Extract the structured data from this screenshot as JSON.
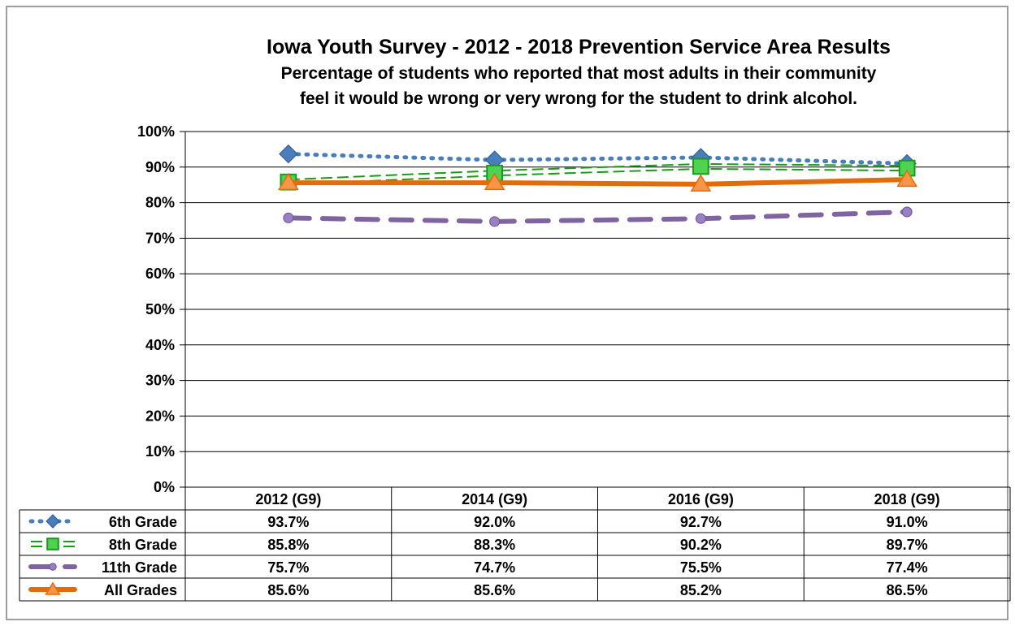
{
  "chart_data": {
    "type": "line",
    "title": "Iowa Youth Survey - 2012 - 2018 Prevention Service Area Results",
    "subtitle_line1": "Percentage of students who reported that most adults in their community",
    "subtitle_line2": "feel it would be wrong or very wrong for the student to drink alcohol.",
    "categories": [
      "2012 (G9)",
      "2014 (G9)",
      "2016 (G9)",
      "2018 (G9)"
    ],
    "ylim": [
      0,
      100
    ],
    "y_ticks": [
      "0%",
      "10%",
      "20%",
      "30%",
      "40%",
      "50%",
      "60%",
      "70%",
      "80%",
      "90%",
      "100%"
    ],
    "grid": true,
    "legend_placement": "data-table",
    "series": [
      {
        "name": "6th Grade",
        "values": [
          93.7,
          92.0,
          92.7,
          91.0
        ],
        "labels": [
          "93.7%",
          "92.0%",
          "92.7%",
          "91.0%"
        ],
        "color": "#4a7ebb",
        "line_style": "dotted",
        "marker": "diamond"
      },
      {
        "name": "8th Grade",
        "values": [
          85.8,
          88.3,
          90.2,
          89.7
        ],
        "labels": [
          "85.8%",
          "88.3%",
          "90.2%",
          "89.7%"
        ],
        "color": "#1a9a1a",
        "line_style": "double-dashed",
        "marker": "square"
      },
      {
        "name": "11th Grade",
        "values": [
          75.7,
          74.7,
          75.5,
          77.4
        ],
        "labels": [
          "75.7%",
          "74.7%",
          "75.5%",
          "77.4%"
        ],
        "color": "#8064a2",
        "line_style": "dashed",
        "marker": "circle"
      },
      {
        "name": "All Grades",
        "values": [
          85.6,
          85.6,
          85.2,
          86.5
        ],
        "labels": [
          "85.6%",
          "85.6%",
          "85.2%",
          "86.5%"
        ],
        "color": "#e36c0a",
        "line_style": "solid",
        "marker": "triangle"
      }
    ]
  }
}
